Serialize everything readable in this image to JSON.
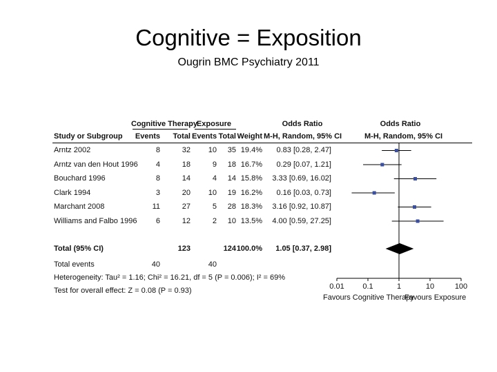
{
  "slide": {
    "title": "Cognitive = Exposition",
    "subtitle": "Ougrin BMC Psychiatry 2011"
  },
  "chart_data": {
    "type": "forest",
    "headers": {
      "group_ct": "Cognitive Therapy",
      "group_exp": "Exposure",
      "or_header": "Odds Ratio",
      "or_plot_header": "Odds Ratio",
      "study": "Study or Subgroup",
      "events": "Events",
      "total": "Total",
      "weight": "Weight",
      "method": "M-H, Random, 95% CI",
      "plot_method": "M-H, Random, 95% CI"
    },
    "studies": [
      {
        "name": "Arntz 2002",
        "ct_events": "8",
        "ct_total": "32",
        "exp_events": "10",
        "exp_total": "35",
        "weight": "19.4%",
        "ci_text": "0.83 [0.28, 2.47]",
        "or": 0.83,
        "low": 0.28,
        "high": 2.47
      },
      {
        "name": "Arntz van den Hout 1996",
        "ct_events": "4",
        "ct_total": "18",
        "exp_events": "9",
        "exp_total": "18",
        "weight": "16.7%",
        "ci_text": "0.29 [0.07, 1.21]",
        "or": 0.29,
        "low": 0.07,
        "high": 1.21
      },
      {
        "name": "Bouchard 1996",
        "ct_events": "8",
        "ct_total": "14",
        "exp_events": "4",
        "exp_total": "14",
        "weight": "15.8%",
        "ci_text": "3.33 [0.69, 16.02]",
        "or": 3.33,
        "low": 0.69,
        "high": 16.02
      },
      {
        "name": "Clark 1994",
        "ct_events": "3",
        "ct_total": "20",
        "exp_events": "10",
        "exp_total": "19",
        "weight": "16.2%",
        "ci_text": "0.16 [0.03, 0.73]",
        "or": 0.16,
        "low": 0.03,
        "high": 0.73
      },
      {
        "name": "Marchant 2008",
        "ct_events": "11",
        "ct_total": "27",
        "exp_events": "5",
        "exp_total": "28",
        "weight": "18.3%",
        "ci_text": "3.16 [0.92, 10.87]",
        "or": 3.16,
        "low": 0.92,
        "high": 10.87
      },
      {
        "name": "Williams and Falbo 1996",
        "ct_events": "6",
        "ct_total": "12",
        "exp_events": "2",
        "exp_total": "10",
        "weight": "13.5%",
        "ci_text": "4.00 [0.59, 27.25]",
        "or": 4.0,
        "low": 0.59,
        "high": 27.25
      }
    ],
    "total": {
      "label": "Total (95% CI)",
      "ct_total": "123",
      "exp_total": "124",
      "weight": "100.0%",
      "ci_text": "1.05 [0.37, 2.98]",
      "or": 1.05,
      "low": 0.37,
      "high": 2.98
    },
    "total_events": {
      "label": "Total events",
      "ct": "40",
      "exp": "40"
    },
    "heterogeneity": "Heterogeneity: Tau² = 1.16; Chi² = 16.21, df = 5 (P = 0.006); I² = 69%",
    "overall_effect": "Test for overall effect: Z = 0.08 (P = 0.93)",
    "x_axis": {
      "scale": "log",
      "range": [
        0.01,
        100
      ],
      "ticks": [
        0.01,
        0.1,
        1,
        10,
        100
      ],
      "tick_labels": [
        "0.01",
        "0.1",
        "1",
        "10",
        "100"
      ]
    },
    "favours_left": "Favours Cognitive Therapy",
    "favours_right": "Favours Exposure",
    "marker_color": "#3a4fa0",
    "line_color": "#000000"
  }
}
